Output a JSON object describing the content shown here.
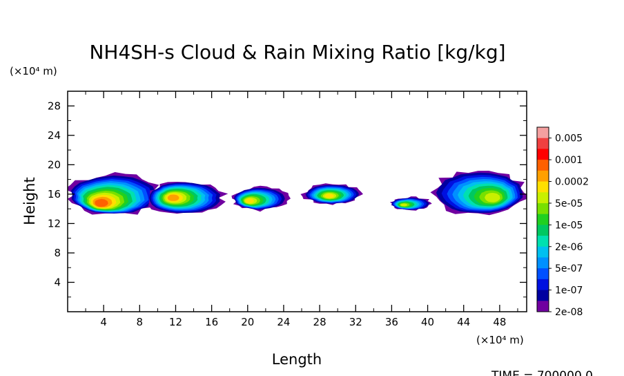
{
  "chart_data": {
    "type": "heatmap",
    "title": "NH4SH-s Cloud & Rain Mixing Ratio [kg/kg]",
    "xlabel": "Length",
    "ylabel": "Height",
    "x_unit": "(×10⁴ m)",
    "y_unit": "(×10⁴ m)",
    "xlim": [
      0,
      51
    ],
    "ylim": [
      0,
      30
    ],
    "x_ticks": [
      4,
      8,
      12,
      16,
      20,
      24,
      28,
      32,
      36,
      40,
      44,
      48
    ],
    "y_ticks": [
      4,
      8,
      12,
      16,
      20,
      24,
      28
    ],
    "time_label": "TIME = 700000.0",
    "colorbar": {
      "labels": [
        "0.005",
        "0.001",
        "0.0002",
        "5e-05",
        "1e-05",
        "2e-06",
        "5e-07",
        "1e-07",
        "2e-08"
      ],
      "colors_top_to_bottom": [
        "#f4a0a0",
        "#f04040",
        "#ff0000",
        "#ff6000",
        "#ffa000",
        "#ffe000",
        "#c8f000",
        "#78e000",
        "#20d020",
        "#00c860",
        "#00e0b0",
        "#00c0f0",
        "#0090ff",
        "#0050ff",
        "#0010e0",
        "#0000a0",
        "#7000a0"
      ]
    },
    "clouds": [
      {
        "name": "cloud-a",
        "x": [
          0,
          10.5
        ],
        "y": [
          13.2,
          18.8
        ],
        "core": [
          3.5,
          14.6
        ],
        "peak_color": "#ff6000"
      },
      {
        "name": "cloud-b",
        "x": [
          8.7,
          17.5
        ],
        "y": [
          13.2,
          17.8
        ],
        "core": [
          11.5,
          15.5
        ],
        "peak_color": "#ffa000"
      },
      {
        "name": "cloud-c",
        "x": [
          18.3,
          24.5
        ],
        "y": [
          13.8,
          17.0
        ],
        "core": [
          20.0,
          15.0
        ],
        "peak_color": "#ffe000"
      },
      {
        "name": "cloud-d",
        "x": [
          26.2,
          32.7
        ],
        "y": [
          14.6,
          17.4
        ],
        "core": [
          29.0,
          15.7
        ],
        "peak_color": "#ffe000"
      },
      {
        "name": "cloud-e",
        "x": [
          35.8,
          40.5
        ],
        "y": [
          13.8,
          15.6
        ],
        "core": [
          37.2,
          14.5
        ],
        "peak_color": "#c8f000"
      },
      {
        "name": "cloud-f",
        "x": [
          40.2,
          51
        ],
        "y": [
          13.2,
          19.3
        ],
        "core": [
          47.5,
          15.4
        ],
        "peak_color": "#c8f000"
      }
    ]
  }
}
